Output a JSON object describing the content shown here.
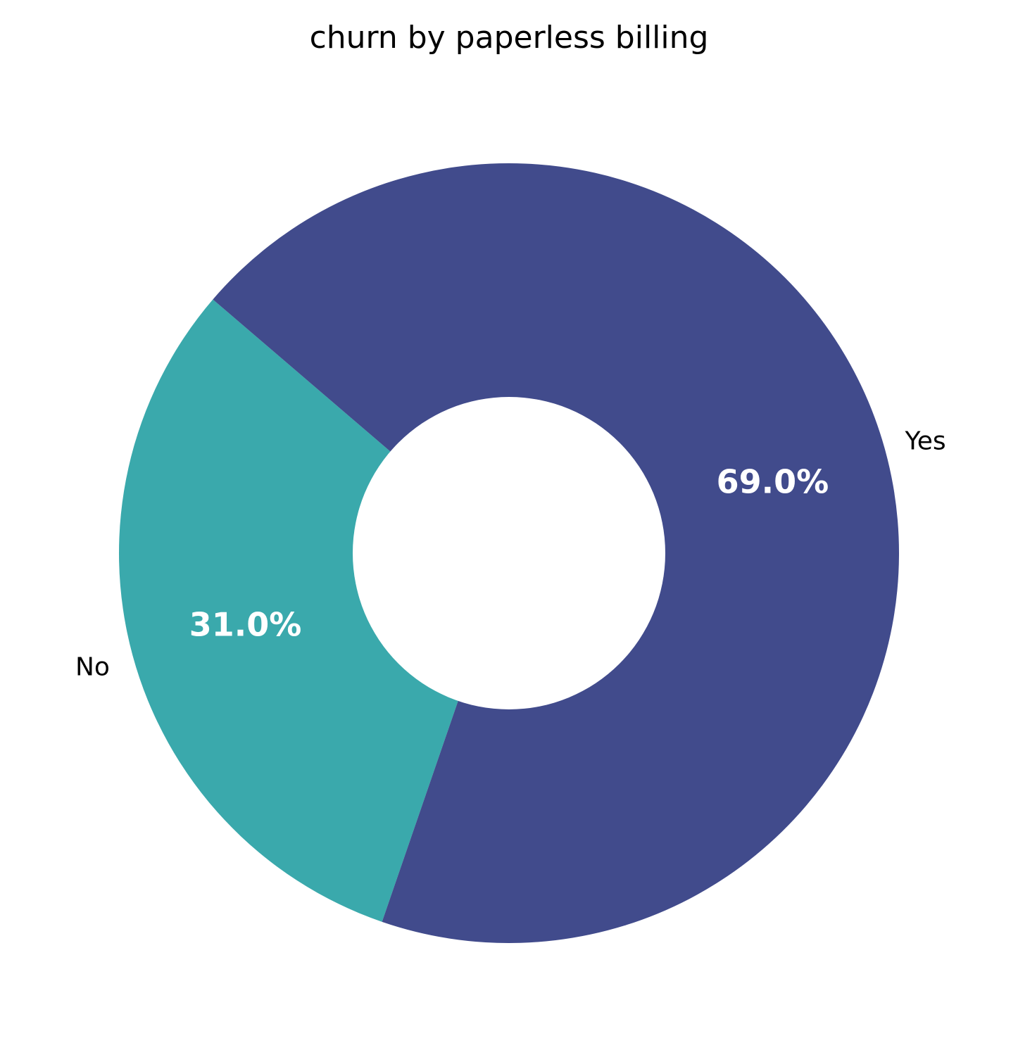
{
  "chart_data": {
    "type": "pie",
    "title": "churn by paperless billing",
    "donut": true,
    "slices": [
      {
        "label": "No",
        "value": 31.0,
        "pct_label": "31.0%",
        "color": "#3aa9ac"
      },
      {
        "label": "Yes",
        "value": 69.0,
        "pct_label": "69.0%",
        "color": "#414b8c"
      }
    ],
    "legend": "none",
    "grid": false
  }
}
